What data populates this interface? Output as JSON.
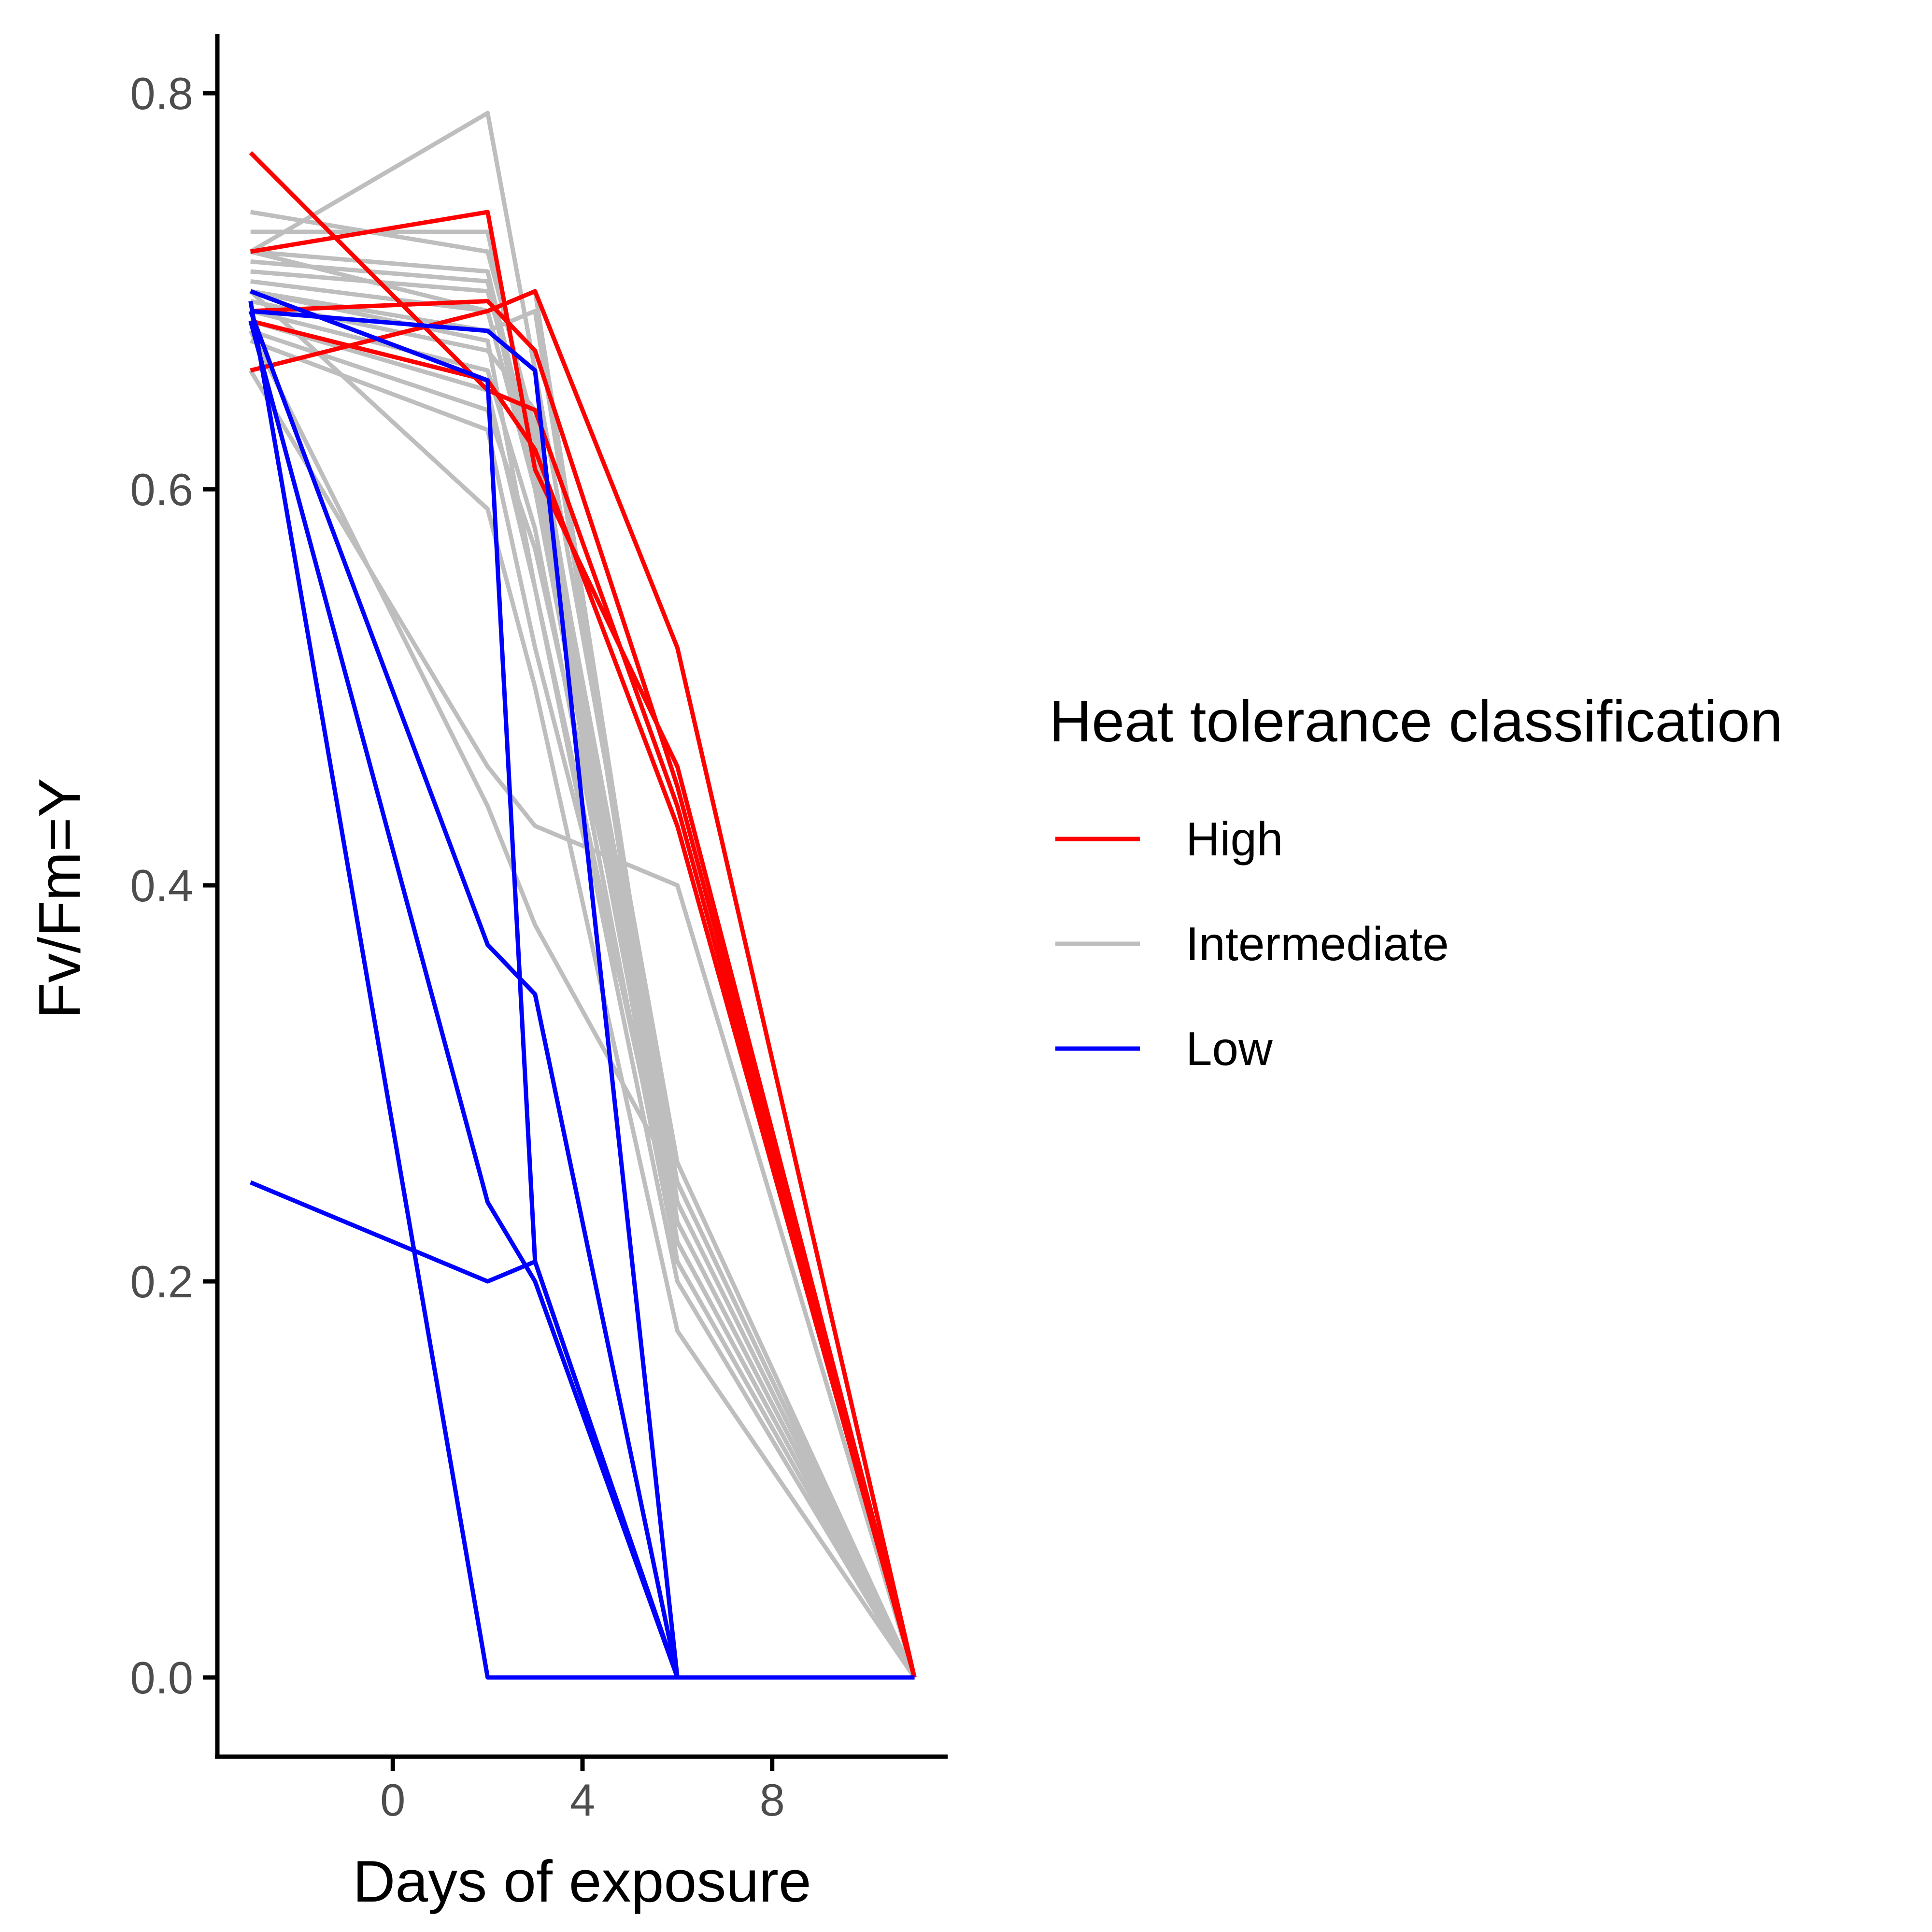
{
  "chart_data": {
    "type": "line",
    "title": "",
    "xlabel": "Days of exposure",
    "ylabel": "Fv/Fm=Y",
    "xlim": [
      -3.7,
      11.7
    ],
    "ylim": [
      -0.04,
      0.83
    ],
    "x_ticks": [
      {
        "value": 0,
        "label": "0"
      },
      {
        "value": 4,
        "label": "4"
      },
      {
        "value": 8,
        "label": "8"
      }
    ],
    "y_ticks": [
      {
        "value": 0.0,
        "label": "0.0"
      },
      {
        "value": 0.2,
        "label": "0.2"
      },
      {
        "value": 0.4,
        "label": "0.4"
      },
      {
        "value": 0.6,
        "label": "0.6"
      },
      {
        "value": 0.8,
        "label": "0.8"
      }
    ],
    "grid": false,
    "legend": {
      "title": "Heat tolerance classification",
      "position": "right",
      "entries": [
        {
          "label": "High",
          "color": "#ff0000"
        },
        {
          "label": "Intermediate",
          "color": "#bebebe"
        },
        {
          "label": "Low",
          "color": "#0000ff"
        }
      ]
    },
    "series": [
      {
        "group": "Intermediate",
        "color": "#bebebe",
        "points": [
          [
            -3,
            0.72
          ],
          [
            2,
            0.79
          ],
          [
            3,
            0.66
          ],
          [
            6,
            0.26
          ],
          [
            11,
            0.0
          ]
        ]
      },
      {
        "group": "Intermediate",
        "color": "#bebebe",
        "points": [
          [
            -3,
            0.74
          ],
          [
            2,
            0.72
          ],
          [
            3,
            0.63
          ],
          [
            6,
            0.25
          ],
          [
            11,
            0.0
          ]
        ]
      },
      {
        "group": "Intermediate",
        "color": "#bebebe",
        "points": [
          [
            -3,
            0.73
          ],
          [
            2,
            0.73
          ],
          [
            3,
            0.62
          ],
          [
            6,
            0.24
          ],
          [
            11,
            0.0
          ]
        ]
      },
      {
        "group": "Intermediate",
        "color": "#bebebe",
        "points": [
          [
            -3,
            0.72
          ],
          [
            2,
            0.71
          ],
          [
            3,
            0.61
          ],
          [
            6,
            0.23
          ],
          [
            11,
            0.0
          ]
        ]
      },
      {
        "group": "Intermediate",
        "color": "#bebebe",
        "points": [
          [
            -3,
            0.715
          ],
          [
            2,
            0.705
          ],
          [
            3,
            0.6
          ],
          [
            6,
            0.22
          ],
          [
            11,
            0.0
          ]
        ]
      },
      {
        "group": "Intermediate",
        "color": "#bebebe",
        "points": [
          [
            -3,
            0.71
          ],
          [
            2,
            0.7
          ],
          [
            3,
            0.62
          ],
          [
            6,
            0.21
          ],
          [
            11,
            0.0
          ]
        ]
      },
      {
        "group": "Intermediate",
        "color": "#bebebe",
        "points": [
          [
            -3,
            0.705
          ],
          [
            2,
            0.69
          ],
          [
            3,
            0.7
          ],
          [
            6,
            0.24
          ],
          [
            11,
            0.0
          ]
        ]
      },
      {
        "group": "Intermediate",
        "color": "#bebebe",
        "points": [
          [
            -3,
            0.7
          ],
          [
            2,
            0.68
          ],
          [
            3,
            0.69
          ],
          [
            6,
            0.23
          ],
          [
            11,
            0.0
          ]
        ]
      },
      {
        "group": "Intermediate",
        "color": "#bebebe",
        "points": [
          [
            -3,
            0.695
          ],
          [
            2,
            0.67
          ],
          [
            3,
            0.64
          ],
          [
            6,
            0.22
          ],
          [
            11,
            0.0
          ]
        ]
      },
      {
        "group": "Intermediate",
        "color": "#bebebe",
        "points": [
          [
            -3,
            0.69
          ],
          [
            2,
            0.66
          ],
          [
            3,
            0.58
          ],
          [
            6,
            0.21
          ],
          [
            11,
            0.0
          ]
        ]
      },
      {
        "group": "Intermediate",
        "color": "#bebebe",
        "points": [
          [
            -3,
            0.685
          ],
          [
            2,
            0.65
          ],
          [
            3,
            0.55
          ],
          [
            6,
            0.2
          ],
          [
            11,
            0.0
          ]
        ]
      },
      {
        "group": "Intermediate",
        "color": "#bebebe",
        "points": [
          [
            -3,
            0.68
          ],
          [
            2,
            0.64
          ],
          [
            3,
            0.57
          ],
          [
            6,
            0.25
          ],
          [
            11,
            0.0
          ]
        ]
      },
      {
        "group": "Intermediate",
        "color": "#bebebe",
        "points": [
          [
            -3,
            0.675
          ],
          [
            2,
            0.63
          ],
          [
            3,
            0.52
          ],
          [
            6,
            0.24
          ],
          [
            11,
            0.0
          ]
        ]
      },
      {
        "group": "Intermediate",
        "color": "#bebebe",
        "points": [
          [
            -3,
            0.7
          ],
          [
            2,
            0.59
          ],
          [
            3,
            0.5
          ],
          [
            6,
            0.175
          ],
          [
            11,
            0.0
          ]
        ]
      },
      {
        "group": "Intermediate",
        "color": "#bebebe",
        "points": [
          [
            -3,
            0.66
          ],
          [
            2,
            0.46
          ],
          [
            3,
            0.43
          ],
          [
            6,
            0.4
          ],
          [
            11,
            0.0
          ]
        ]
      },
      {
        "group": "Intermediate",
        "color": "#bebebe",
        "points": [
          [
            -3,
            0.68
          ],
          [
            2,
            0.44
          ],
          [
            3,
            0.38
          ],
          [
            6,
            0.25
          ],
          [
            11,
            0.0
          ]
        ]
      },
      {
        "group": "Intermediate",
        "color": "#bebebe",
        "points": [
          [
            -3,
            0.72
          ],
          [
            2,
            0.69
          ],
          [
            3,
            0.6
          ],
          [
            6,
            0.23
          ],
          [
            11,
            0.0
          ]
        ]
      },
      {
        "group": "Intermediate",
        "color": "#bebebe",
        "points": [
          [
            -3,
            0.7
          ],
          [
            2,
            0.675
          ],
          [
            3,
            0.55
          ],
          [
            6,
            0.22
          ],
          [
            11,
            0.0
          ]
        ]
      },
      {
        "group": "High",
        "color": "#ff0000",
        "points": [
          [
            -3,
            0.77
          ],
          [
            2,
            0.65
          ],
          [
            3,
            0.64
          ],
          [
            6,
            0.44
          ],
          [
            11,
            0.0
          ]
        ]
      },
      {
        "group": "High",
        "color": "#ff0000",
        "points": [
          [
            -3,
            0.72
          ],
          [
            2,
            0.74
          ],
          [
            3,
            0.61
          ],
          [
            6,
            0.46
          ],
          [
            11,
            0.0
          ]
        ]
      },
      {
        "group": "High",
        "color": "#ff0000",
        "points": [
          [
            -3,
            0.69
          ],
          [
            2,
            0.695
          ],
          [
            3,
            0.67
          ],
          [
            6,
            0.45
          ],
          [
            11,
            0.0
          ]
        ]
      },
      {
        "group": "High",
        "color": "#ff0000",
        "points": [
          [
            -3,
            0.66
          ],
          [
            2,
            0.69
          ],
          [
            3,
            0.7
          ],
          [
            6,
            0.52
          ],
          [
            11,
            0.0
          ]
        ]
      },
      {
        "group": "High",
        "color": "#ff0000",
        "points": [
          [
            -3,
            0.685
          ],
          [
            2,
            0.655
          ],
          [
            3,
            0.62
          ],
          [
            6,
            0.43
          ],
          [
            11,
            0.0
          ]
        ]
      },
      {
        "group": "Low",
        "color": "#0000ff",
        "points": [
          [
            -3,
            0.7
          ],
          [
            2,
            0.655
          ],
          [
            3,
            0.21
          ],
          [
            6,
            0.0
          ],
          [
            11,
            0.0
          ]
        ]
      },
      {
        "group": "Low",
        "color": "#0000ff",
        "points": [
          [
            -3,
            0.69
          ],
          [
            2,
            0.68
          ],
          [
            3,
            0.66
          ],
          [
            6,
            0.0
          ],
          [
            11,
            0.0
          ]
        ]
      },
      {
        "group": "Low",
        "color": "#0000ff",
        "points": [
          [
            -3,
            0.69
          ],
          [
            2,
            0.37
          ],
          [
            3,
            0.345
          ],
          [
            6,
            0.0
          ],
          [
            11,
            0.0
          ]
        ]
      },
      {
        "group": "Low",
        "color": "#0000ff",
        "points": [
          [
            -3,
            0.685
          ],
          [
            2,
            0.24
          ],
          [
            3,
            0.2
          ],
          [
            6,
            0.0
          ],
          [
            11,
            0.0
          ]
        ]
      },
      {
        "group": "Low",
        "color": "#0000ff",
        "points": [
          [
            -3,
            0.695
          ],
          [
            2,
            0.0
          ],
          [
            3,
            0.0
          ],
          [
            6,
            0.0
          ],
          [
            11,
            0.0
          ]
        ]
      },
      {
        "group": "Low",
        "color": "#0000ff",
        "points": [
          [
            -3,
            0.25
          ],
          [
            2,
            0.2
          ],
          [
            3,
            0.21
          ],
          [
            6,
            0.0
          ],
          [
            11,
            0.0
          ]
        ]
      }
    ]
  }
}
